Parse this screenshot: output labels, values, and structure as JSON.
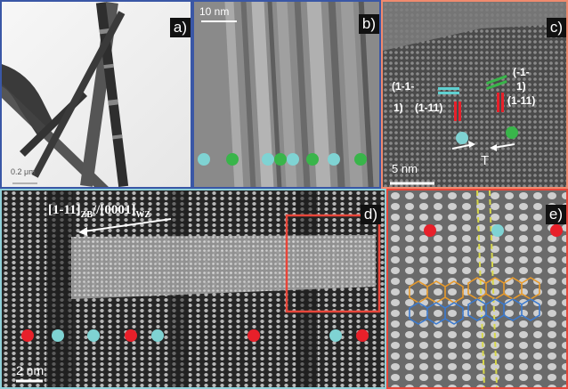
{
  "colors": {
    "blue_border": "#3a57a6",
    "orange_border": "#f08a6e",
    "cyan_border": "#8fd0d8",
    "red_border": "#e8463a",
    "dot_cyan": "#7fd3d3",
    "dot_green": "#39b54a",
    "dot_red": "#e8202a",
    "line_yellow": "#d8d84a"
  },
  "panels": {
    "a": {
      "label": "a)",
      "scale_text": "0.2 μm"
    },
    "b": {
      "label": "b)",
      "scale_text": "10 nm"
    },
    "c": {
      "label": "c)",
      "scale_text": "5  nm",
      "planes_left": [
        "(1-1-",
        "1)",
        "(1-11)"
      ],
      "planes_right": [
        "(-1-",
        "1)",
        "(1-11)"
      ],
      "twin_label": "T"
    },
    "d": {
      "label": "d)",
      "scale_text": "2 nm",
      "direction_text_main": "[1-11]",
      "direction_sub_1": "ZB",
      "direction_mid": "//[0001]",
      "direction_sub_2": "WZ"
    },
    "e": {
      "label": "e)"
    }
  }
}
